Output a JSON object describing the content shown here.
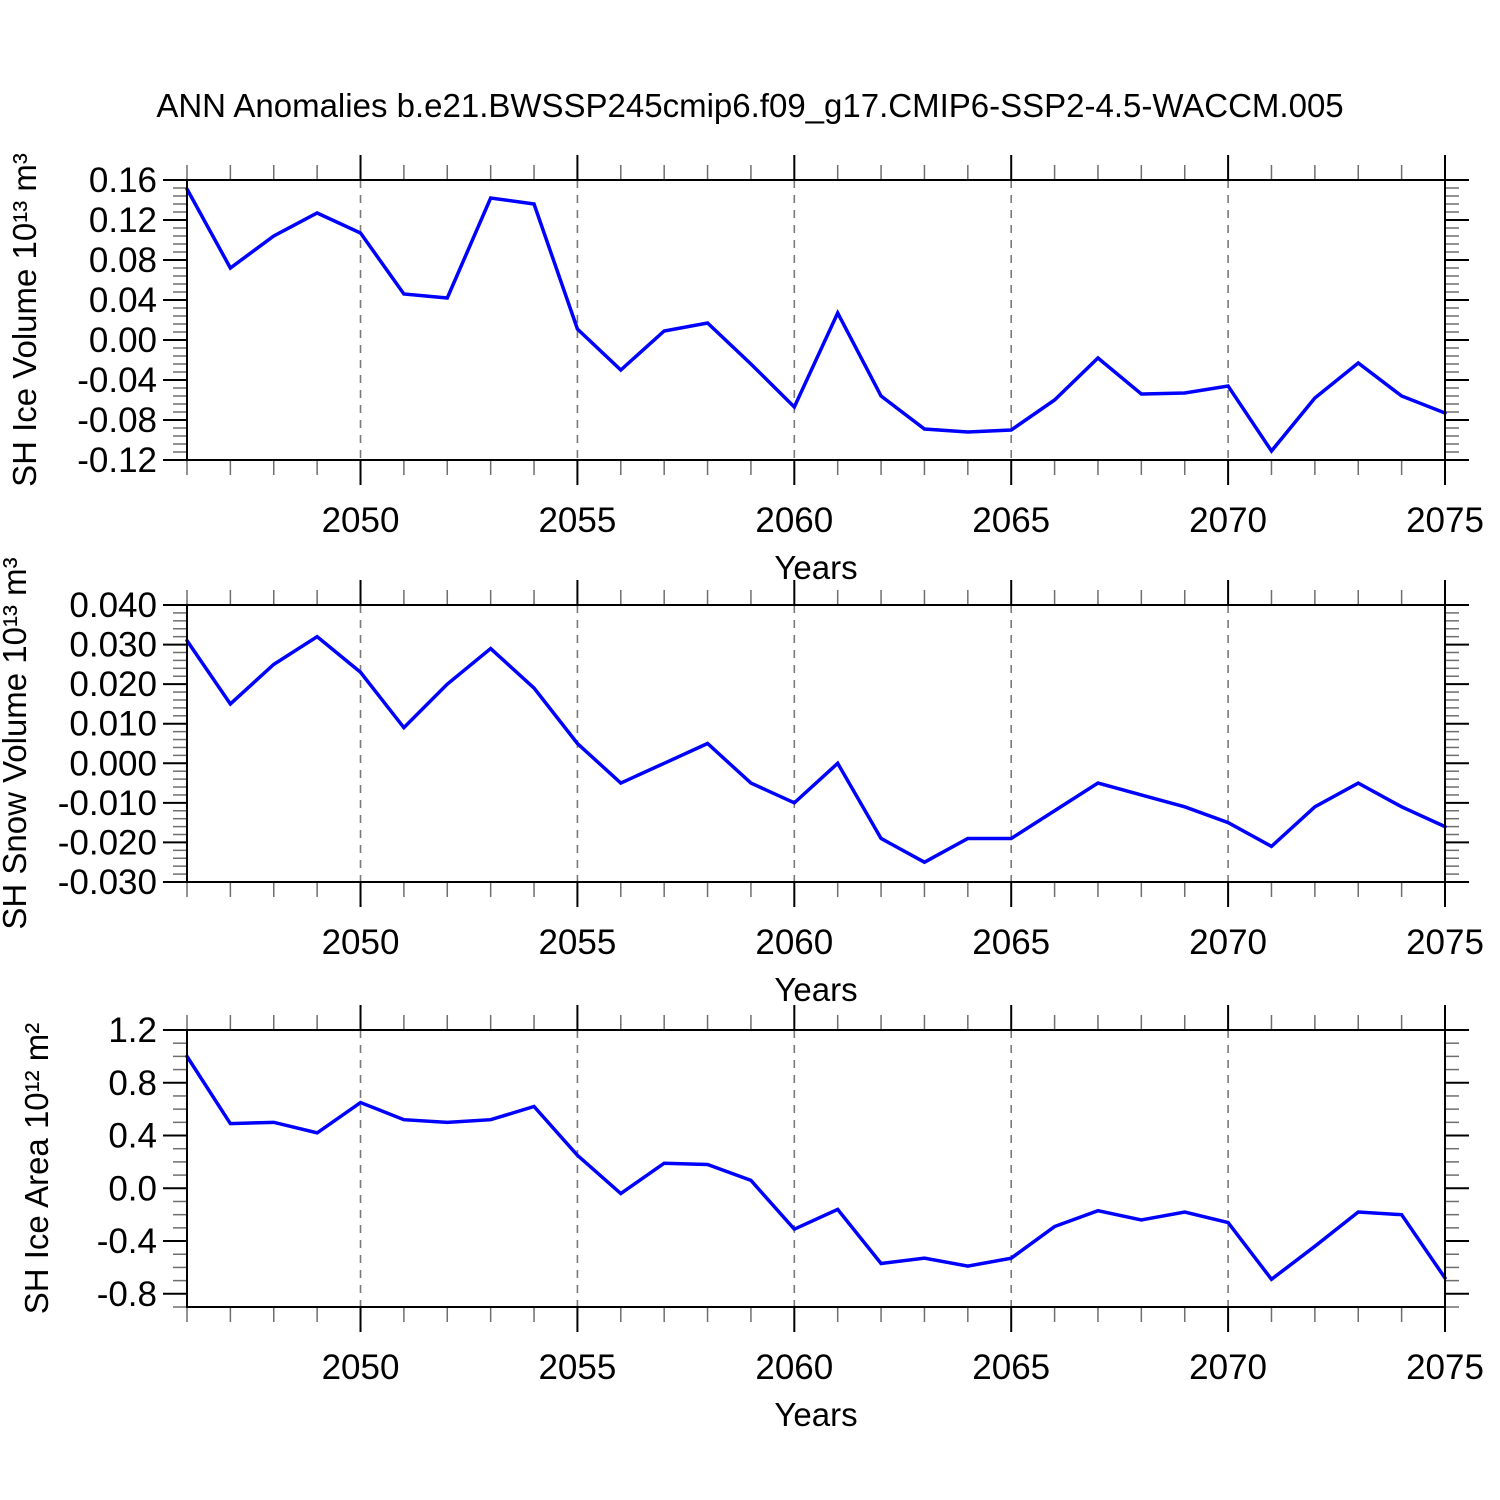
{
  "title": "ANN Anomalies b.e21.BWSSP245cmip6.f09_g17.CMIP6-SSP2-4.5-WACCM.005",
  "line_color": "#0000ff",
  "axis_color": "#000000",
  "minor_tick_color": "#6e6e6e",
  "gridline_color": "#7a7a7a",
  "chart_data": [
    {
      "type": "line",
      "title": "",
      "ylabel": "SH Ice Volume 10¹³ m³",
      "xlabel": "Years",
      "x": [
        2046,
        2047,
        2048,
        2049,
        2050,
        2051,
        2052,
        2053,
        2054,
        2055,
        2056,
        2057,
        2058,
        2059,
        2060,
        2061,
        2062,
        2063,
        2064,
        2065,
        2066,
        2067,
        2068,
        2069,
        2070,
        2071,
        2072,
        2073,
        2074,
        2075
      ],
      "values": [
        0.151,
        0.072,
        0.104,
        0.127,
        0.107,
        0.046,
        0.042,
        0.142,
        0.136,
        0.011,
        -0.03,
        0.009,
        0.017,
        -0.024,
        -0.067,
        0.027,
        -0.056,
        -0.089,
        -0.092,
        -0.09,
        -0.06,
        -0.018,
        -0.054,
        -0.053,
        -0.046,
        -0.111,
        -0.058,
        -0.023,
        -0.056,
        -0.073
      ],
      "xlim": [
        2046,
        2075
      ],
      "ylim": [
        -0.12,
        0.16
      ],
      "ymajors": [
        0.16,
        0.12,
        0.08,
        0.04,
        0.0,
        -0.04,
        -0.08,
        -0.12
      ],
      "ytick_labels": [
        "0.16",
        "0.12",
        "0.08",
        "0.04",
        "0.00",
        "-0.04",
        "-0.08",
        "-0.12"
      ],
      "yminor_step": 0.008,
      "xmajors": [
        2050,
        2055,
        2060,
        2065,
        2070,
        2075
      ],
      "xtick_labels": [
        "2050",
        "2055",
        "2060",
        "2065",
        "2070",
        "2075"
      ],
      "xminor_step": 1,
      "grid_years": [
        2050,
        2055,
        2060,
        2065,
        2070
      ],
      "grid": "vertical-dashed",
      "legend": "none"
    },
    {
      "type": "line",
      "title": "",
      "ylabel": "SH Snow Volume 10¹³ m³",
      "xlabel": "Years",
      "x": [
        2046,
        2047,
        2048,
        2049,
        2050,
        2051,
        2052,
        2053,
        2054,
        2055,
        2056,
        2057,
        2058,
        2059,
        2060,
        2061,
        2062,
        2063,
        2064,
        2065,
        2066,
        2067,
        2068,
        2069,
        2070,
        2071,
        2072,
        2073,
        2074,
        2075
      ],
      "values": [
        0.031,
        0.015,
        0.025,
        0.032,
        0.023,
        0.009,
        0.02,
        0.029,
        0.019,
        0.005,
        -0.005,
        0.0,
        0.005,
        -0.005,
        -0.01,
        0.0,
        -0.019,
        -0.025,
        -0.019,
        -0.019,
        -0.012,
        -0.005,
        -0.008,
        -0.011,
        -0.015,
        -0.021,
        -0.011,
        -0.005,
        -0.011,
        -0.016
      ],
      "xlim": [
        2046,
        2075
      ],
      "ylim": [
        -0.03,
        0.04
      ],
      "ymajors": [
        0.04,
        0.03,
        0.02,
        0.01,
        0.0,
        -0.01,
        -0.02,
        -0.03
      ],
      "ytick_labels": [
        "0.040",
        "0.030",
        "0.020",
        "0.010",
        "0.000",
        "-0.010",
        "-0.020",
        "-0.030"
      ],
      "yminor_step": 0.002,
      "xmajors": [
        2050,
        2055,
        2060,
        2065,
        2070,
        2075
      ],
      "xtick_labels": [
        "2050",
        "2055",
        "2060",
        "2065",
        "2070",
        "2075"
      ],
      "xminor_step": 1,
      "grid_years": [
        2050,
        2055,
        2060,
        2065,
        2070
      ],
      "grid": "vertical-dashed",
      "legend": "none"
    },
    {
      "type": "line",
      "title": "",
      "ylabel": "SH Ice Area 10¹² m²",
      "xlabel": "Years",
      "x": [
        2046,
        2047,
        2048,
        2049,
        2050,
        2051,
        2052,
        2053,
        2054,
        2055,
        2056,
        2057,
        2058,
        2059,
        2060,
        2061,
        2062,
        2063,
        2064,
        2065,
        2066,
        2067,
        2068,
        2069,
        2070,
        2071,
        2072,
        2073,
        2074,
        2075
      ],
      "values": [
        1.0,
        0.49,
        0.5,
        0.42,
        0.65,
        0.52,
        0.5,
        0.52,
        0.62,
        0.25,
        -0.04,
        0.19,
        0.18,
        0.06,
        -0.31,
        -0.16,
        -0.57,
        -0.53,
        -0.59,
        -0.53,
        -0.29,
        -0.17,
        -0.24,
        -0.18,
        -0.26,
        -0.69,
        -0.44,
        -0.18,
        -0.2,
        -0.68
      ],
      "xlim": [
        2046,
        2075
      ],
      "ylim": [
        -0.9,
        1.2
      ],
      "ymajors": [
        1.2,
        0.8,
        0.4,
        0.0,
        -0.4,
        -0.8
      ],
      "ytick_labels": [
        "1.2",
        "0.8",
        "0.4",
        "0.0",
        "-0.4",
        "-0.8"
      ],
      "yminor_step": 0.1,
      "xmajors": [
        2050,
        2055,
        2060,
        2065,
        2070,
        2075
      ],
      "xtick_labels": [
        "2050",
        "2055",
        "2060",
        "2065",
        "2070",
        "2075"
      ],
      "xminor_step": 1,
      "grid_years": [
        2050,
        2055,
        2060,
        2065,
        2070
      ],
      "grid": "vertical-dashed",
      "legend": "none"
    }
  ]
}
